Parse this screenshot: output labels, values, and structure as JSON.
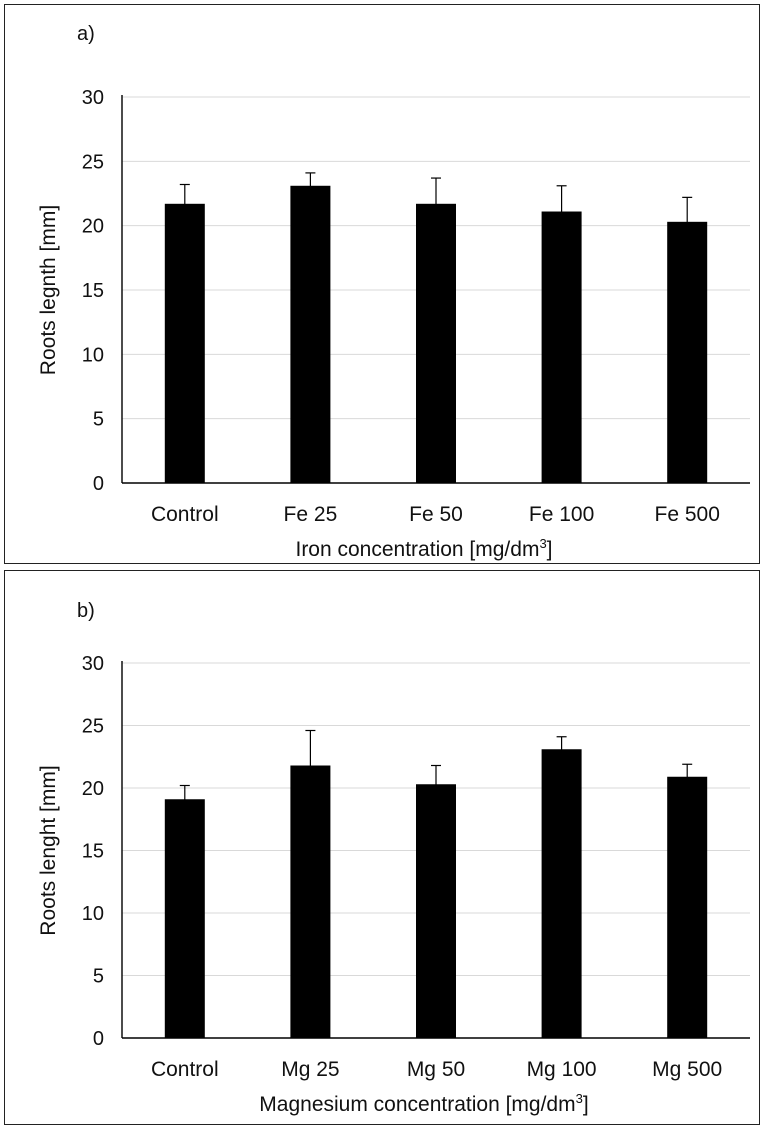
{
  "chart_data": [
    {
      "type": "bar",
      "panel_label": "a)",
      "categories": [
        "Control",
        "Fe 25",
        "Fe 50",
        "Fe 100",
        "Fe 500"
      ],
      "values": [
        21.7,
        23.1,
        21.7,
        21.1,
        20.3
      ],
      "errors": [
        1.5,
        1.0,
        2.0,
        2.0,
        1.9
      ],
      "xlabel": "Iron concentration [mg/dm",
      "xlabel_sup": "3",
      "xlabel_end": "]",
      "ylabel": "Roots legnth [mm]",
      "ylim": [
        0,
        30
      ],
      "yticks": [
        "0",
        "5",
        "10",
        "15",
        "20",
        "25",
        "30"
      ],
      "grid": true,
      "bar_color": "#000000",
      "grid_color": "#d9d9d9"
    },
    {
      "type": "bar",
      "panel_label": "b)",
      "categories": [
        "Control",
        "Mg 25",
        "Mg 50",
        "Mg 100",
        "Mg 500"
      ],
      "values": [
        19.1,
        21.8,
        20.3,
        23.1,
        20.9
      ],
      "errors": [
        1.1,
        2.8,
        1.5,
        1.0,
        1.0
      ],
      "xlabel": "Magnesium concentration [mg/dm",
      "xlabel_sup": "3",
      "xlabel_end": "]",
      "ylabel": "Roots lenght [mm]",
      "ylim": [
        0,
        30
      ],
      "yticks": [
        "0",
        "5",
        "10",
        "15",
        "20",
        "25",
        "30"
      ],
      "grid": true,
      "bar_color": "#000000",
      "grid_color": "#d9d9d9"
    }
  ]
}
